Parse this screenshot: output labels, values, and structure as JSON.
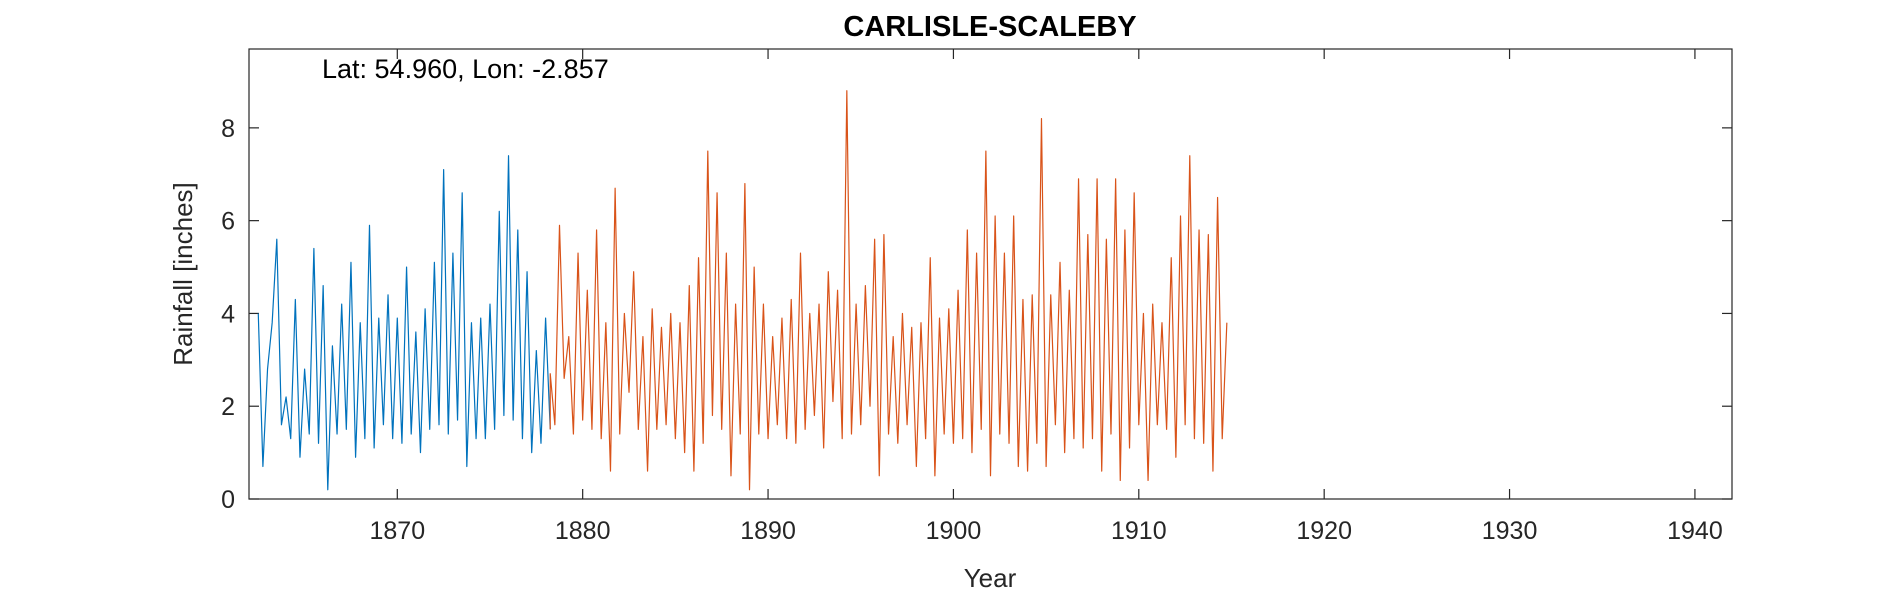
{
  "chart_data": {
    "type": "line",
    "title": "CARLISLE-SCALEBY",
    "xlabel": "Year",
    "ylabel": "Rainfall [inches]",
    "annotation": "Lat: 54.960, Lon: -2.857",
    "xlim": [
      1862,
      1942
    ],
    "ylim": [
      0,
      9.7
    ],
    "xticks": [
      1870,
      1880,
      1890,
      1900,
      1910,
      1920,
      1930,
      1940
    ],
    "yticks": [
      0,
      2,
      4,
      6,
      8
    ],
    "grid": false,
    "colors": [
      "#0072BD",
      "#D95319"
    ],
    "series": [
      {
        "x_start": 1862.5,
        "x_step": 0.25,
        "values": [
          4.0,
          0.7,
          2.8,
          3.8,
          5.6,
          1.6,
          2.2,
          1.3,
          4.3,
          0.9,
          2.8,
          1.4,
          5.4,
          1.2,
          4.6,
          0.2,
          3.3,
          1.4,
          4.2,
          1.5,
          5.1,
          0.9,
          3.8,
          1.3,
          5.9,
          1.1,
          3.9,
          1.6,
          4.4,
          1.3,
          3.9,
          1.2,
          5.0,
          1.4,
          3.6,
          1.0,
          4.1,
          1.5,
          5.1,
          1.6,
          7.1,
          1.4,
          5.3,
          1.7,
          6.6,
          0.7,
          3.8,
          1.3,
          3.9,
          1.3,
          4.2,
          1.5,
          6.2,
          1.8,
          7.4,
          1.7,
          5.8,
          1.3,
          4.9,
          1.0,
          3.2,
          1.2,
          3.9,
          1.5
        ]
      },
      {
        "x_start": 1878.25,
        "x_step": 0.25,
        "values": [
          2.7,
          1.6,
          5.9,
          2.6,
          3.5,
          1.4,
          5.3,
          1.7,
          4.5,
          1.5,
          5.8,
          1.3,
          3.8,
          0.6,
          6.7,
          1.4,
          4.0,
          2.3,
          4.9,
          1.5,
          3.5,
          0.6,
          4.1,
          1.5,
          3.7,
          1.6,
          4.0,
          1.3,
          3.8,
          1.0,
          4.6,
          0.6,
          5.2,
          1.2,
          7.5,
          1.8,
          6.6,
          1.5,
          5.3,
          0.5,
          4.2,
          1.4,
          6.8,
          0.2,
          5.0,
          1.4,
          4.2,
          1.3,
          3.5,
          1.6,
          3.9,
          1.3,
          4.3,
          1.2,
          5.3,
          1.5,
          4.0,
          1.8,
          4.2,
          1.1,
          4.9,
          2.1,
          4.5,
          1.3,
          8.8,
          1.4,
          4.2,
          1.6,
          4.6,
          2.0,
          5.6,
          0.5,
          5.7,
          1.4,
          3.5,
          1.2,
          4.0,
          1.6,
          3.7,
          0.7,
          3.8,
          1.3,
          5.2,
          0.5,
          3.9,
          1.4,
          4.1,
          1.2,
          4.5,
          1.3,
          5.8,
          1.0,
          5.3,
          1.5,
          7.5,
          0.5,
          6.1,
          1.4,
          5.3,
          1.2,
          6.1,
          0.7,
          4.3,
          0.6,
          4.4,
          1.2,
          8.2,
          0.7,
          4.4,
          1.6,
          5.1,
          1.0,
          4.5,
          1.3,
          6.9,
          1.1,
          5.7,
          1.3,
          6.9,
          0.6,
          5.6,
          1.4,
          6.9,
          0.4,
          5.8,
          1.1,
          6.6,
          1.6,
          4.0,
          0.4,
          4.2,
          1.6,
          3.8,
          1.5,
          5.2,
          0.9,
          6.1,
          1.6,
          7.4,
          1.3,
          5.8,
          1.2,
          5.7,
          0.6,
          6.5,
          1.3,
          3.8
        ]
      }
    ]
  }
}
